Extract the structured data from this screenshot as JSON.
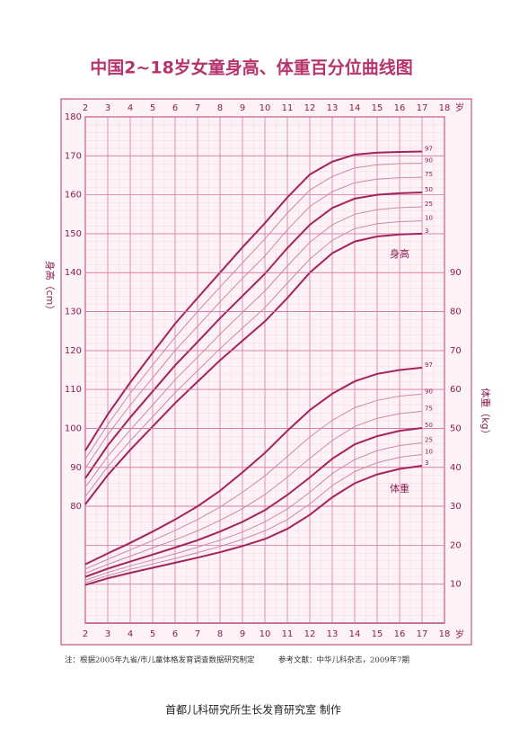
{
  "chart_data": [
    {
      "type": "line",
      "title": "中国2~18岁女童身高、体重百分位曲线图",
      "label": "身高",
      "ylabel": "身高（cm）",
      "xlabel": "岁",
      "annotations": [
        "注：根据2005年九省/市儿童体格发育调查数据研究制定",
        "参考文献：中华儿科杂志，2009年7期",
        "首都儿科研究所生长发育研究室 制作"
      ],
      "xlim": [
        2,
        18
      ],
      "xticks": [
        2,
        3,
        4,
        5,
        6,
        7,
        8,
        9,
        10,
        11,
        12,
        13,
        14,
        15,
        16,
        17,
        18
      ],
      "ylim": [
        50,
        180
      ],
      "yticks": [
        80,
        90,
        100,
        110,
        120,
        130,
        140,
        150,
        160,
        170,
        180
      ],
      "grid": true,
      "x": [
        2,
        3,
        4,
        5,
        6,
        7,
        8,
        9,
        10,
        11,
        12,
        13,
        14,
        15,
        16,
        17
      ],
      "series": [
        {
          "name": "97",
          "color": "#a3245c",
          "values": [
            94.3,
            103.6,
            111.8,
            119.4,
            126.9,
            133.5,
            140,
            146.5,
            152.7,
            159.3,
            165.2,
            168.5,
            170.3,
            170.8,
            171,
            171.1
          ]
        },
        {
          "name": "90",
          "color": "#c98aab",
          "values": [
            92.1,
            101,
            109,
            116.3,
            123.4,
            130,
            136.3,
            142.5,
            148.7,
            155.3,
            161.2,
            164.7,
            166.9,
            167.7,
            168,
            168.1
          ]
        },
        {
          "name": "75",
          "color": "#c98aab",
          "values": [
            89.8,
            98.4,
            106,
            113,
            120,
            126.2,
            132.5,
            138.5,
            144.3,
            151,
            157,
            160.8,
            163.1,
            164,
            164.4,
            164.5
          ]
        },
        {
          "name": "50",
          "color": "#a3245c",
          "values": [
            87.2,
            95.6,
            102.8,
            109.5,
            116.2,
            122.2,
            128.3,
            134,
            139.7,
            146.3,
            152.3,
            156.6,
            159,
            160,
            160.4,
            160.6
          ]
        },
        {
          "name": "25",
          "color": "#c98aab",
          "values": [
            84.9,
            92.8,
            99.6,
            106,
            112.5,
            118.3,
            124.2,
            129.8,
            135.3,
            141.7,
            147.8,
            152.3,
            155,
            156.2,
            156.7,
            156.9
          ]
        },
        {
          "name": "10",
          "color": "#c98aab",
          "values": [
            82.5,
            90.2,
            96.8,
            103,
            109.2,
            114.8,
            120.5,
            125.8,
            131,
            137.3,
            143.5,
            148.3,
            151.3,
            152.6,
            153.1,
            153.3
          ]
        },
        {
          "name": "3",
          "color": "#a3245c",
          "values": [
            80.5,
            88,
            94.5,
            100.5,
            106.5,
            112,
            117.5,
            122.5,
            127.5,
            133.5,
            140,
            145,
            148,
            149.3,
            149.8,
            150
          ]
        }
      ]
    },
    {
      "type": "line",
      "label": "体重",
      "ylabel": "体重（kg）",
      "xlim": [
        2,
        18
      ],
      "ylim": [
        0,
        130
      ],
      "yticks": [
        10,
        20,
        30,
        40,
        50,
        60,
        70,
        80,
        90
      ],
      "x": [
        2,
        3,
        4,
        5,
        6,
        7,
        8,
        9,
        10,
        11,
        12,
        13,
        14,
        15,
        16,
        17
      ],
      "series": [
        {
          "name": "97",
          "color": "#a3245c",
          "values": [
            15.1,
            17.9,
            20.6,
            23.5,
            26.6,
            30,
            34,
            38.7,
            43.7,
            49.4,
            54.7,
            58.9,
            62.1,
            64,
            65,
            65.6
          ]
        },
        {
          "name": "90",
          "color": "#c98aab",
          "values": [
            13.9,
            16.4,
            18.8,
            21.2,
            23.8,
            26.6,
            29.8,
            33.6,
            37.8,
            42.8,
            47.8,
            52.1,
            55.3,
            57.2,
            58.3,
            58.8
          ]
        },
        {
          "name": "75",
          "color": "#c98aab",
          "values": [
            12.8,
            15.1,
            17.2,
            19.3,
            21.4,
            23.7,
            26.4,
            29.4,
            33,
            37.5,
            42.3,
            46.9,
            50.5,
            52.6,
            53.8,
            54.4
          ]
        },
        {
          "name": "50",
          "color": "#a3245c",
          "values": [
            11.9,
            14,
            15.8,
            17.6,
            19.4,
            21.3,
            23.5,
            26,
            29,
            32.9,
            37.4,
            42.2,
            45.9,
            48,
            49.4,
            50.1
          ]
        },
        {
          "name": "25",
          "color": "#c98aab",
          "values": [
            11,
            13,
            14.7,
            16.2,
            17.8,
            19.5,
            21.3,
            23.4,
            26,
            29.3,
            33.6,
            38.4,
            42,
            44.3,
            45.6,
            46.3
          ]
        },
        {
          "name": "10",
          "color": "#c98aab",
          "values": [
            10.4,
            12.2,
            13.8,
            15.2,
            16.6,
            18.1,
            19.7,
            21.5,
            23.7,
            26.6,
            30.6,
            35.3,
            38.9,
            41.2,
            42.6,
            43.3
          ]
        },
        {
          "name": "3",
          "color": "#a3245c",
          "values": [
            9.8,
            11.5,
            12.9,
            14.2,
            15.5,
            16.8,
            18.2,
            19.8,
            21.6,
            24.2,
            27.8,
            32.3,
            35.9,
            38.2,
            39.6,
            40.4
          ]
        }
      ]
    }
  ]
}
